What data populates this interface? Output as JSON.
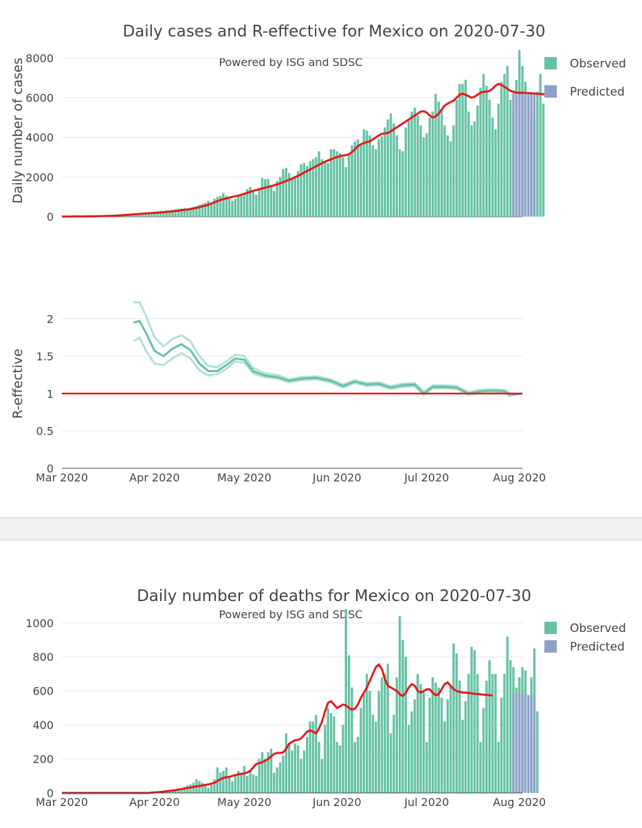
{
  "chart_data": [
    {
      "type": "bar",
      "id": "cases",
      "title": "Daily cases and R-effective for Mexico on 2020-07-30",
      "subtitle": "Powered by ISG and SDSC",
      "ylabel": "Daily number of cases",
      "xlabel": "",
      "ylim": [
        0,
        8500
      ],
      "yticks": [
        0,
        2000,
        4000,
        6000,
        8000
      ],
      "yticklabels": [
        "0",
        "2000",
        "4000",
        "6000",
        "8000"
      ],
      "x_range": [
        "2020-03-01",
        "2020-08-02"
      ],
      "xticks": [
        "2020-03-01",
        "2020-04-01",
        "2020-05-01",
        "2020-06-01",
        "2020-07-01",
        "2020-08-01"
      ],
      "xticklabels": [
        "Mar 2020",
        "Apr 2020",
        "May 2020",
        "Jun 2020",
        "Jul 2020",
        "Aug 2020"
      ],
      "legend": [
        {
          "name": "Observed",
          "color": "#66c2a5"
        },
        {
          "name": "Predicted",
          "color": "#8da0cb"
        }
      ],
      "legend_position": "top-right",
      "series": [
        {
          "name": "Observed",
          "color": "#66c2a5",
          "start_date": "2020-03-01",
          "values": [
            0,
            2,
            3,
            2,
            4,
            3,
            5,
            6,
            10,
            12,
            16,
            20,
            25,
            30,
            40,
            45,
            55,
            65,
            80,
            85,
            95,
            110,
            120,
            130,
            100,
            80,
            140,
            170,
            190,
            200,
            210,
            230,
            260,
            300,
            280,
            320,
            300,
            340,
            370,
            390,
            410,
            440,
            380,
            460,
            500,
            540,
            600,
            650,
            700,
            800,
            720,
            900,
            1000,
            1050,
            1200,
            1050,
            950,
            800,
            900,
            1050,
            1150,
            1200,
            1400,
            1500,
            1300,
            1100,
            1450,
            1950,
            1900,
            1900,
            1550,
            1300,
            1800,
            2000,
            2400,
            2450,
            2200,
            1900,
            2050,
            2300,
            2650,
            2700,
            2550,
            2800,
            2900,
            3000,
            3300,
            2900,
            2800,
            2700,
            3400,
            3400,
            3300,
            3200,
            3000,
            2500,
            3200,
            3600,
            3800,
            3900,
            3600,
            4400,
            4350,
            4100,
            3600,
            3400,
            3900,
            4050,
            4500,
            4900,
            5200,
            4700,
            4100,
            3400,
            3300,
            4500,
            4900,
            5300,
            5500,
            5100,
            4600,
            4000,
            4200,
            5000,
            5300,
            6200,
            5800,
            5400,
            4600,
            4100,
            3800,
            4600,
            5900,
            6700,
            6700,
            6900,
            5300,
            4600,
            4800,
            5600,
            6500,
            7200,
            6600,
            5900,
            5000,
            4400,
            5700,
            6800,
            7200,
            7600,
            5900,
            5200,
            6900,
            8400,
            7600,
            6800,
            6000,
            5300,
            5000,
            6300,
            7200,
            5700
          ]
        },
        {
          "name": "Predicted",
          "color": "#8da0cb",
          "start_date": "2020-07-30",
          "values": [
            6250,
            6240,
            6230,
            6220,
            6210,
            6200,
            6190,
            6180
          ]
        },
        {
          "name": "Trend",
          "type": "line",
          "color": "#e41a1c",
          "start_date": "2020-03-01",
          "values": [
            5,
            5,
            6,
            6,
            7,
            8,
            9,
            10,
            12,
            14,
            16,
            18,
            21,
            24,
            28,
            33,
            38,
            44,
            52,
            60,
            70,
            80,
            90,
            105,
            115,
            125,
            135,
            150,
            160,
            170,
            180,
            190,
            200,
            210,
            225,
            240,
            255,
            270,
            285,
            300,
            320,
            340,
            360,
            380,
            410,
            440,
            480,
            520,
            560,
            600,
            660,
            720,
            780,
            840,
            880,
            920,
            960,
            1000,
            1030,
            1060,
            1100,
            1150,
            1200,
            1250,
            1300,
            1340,
            1380,
            1420,
            1460,
            1500,
            1540,
            1580,
            1630,
            1680,
            1740,
            1800,
            1860,
            1920,
            1990,
            2060,
            2140,
            2220,
            2300,
            2380,
            2460,
            2540,
            2620,
            2700,
            2770,
            2830,
            2890,
            2950,
            3000,
            3050,
            3080,
            3100,
            3150,
            3250,
            3400,
            3550,
            3650,
            3720,
            3760,
            3800,
            3900,
            4000,
            4100,
            4180,
            4200,
            4220,
            4300,
            4400,
            4500,
            4600,
            4700,
            4800,
            4900,
            5000,
            5100,
            5200,
            5300,
            5320,
            5250,
            5100,
            5000,
            5050,
            5200,
            5400,
            5600,
            5700,
            5780,
            5850,
            6000,
            6150,
            6200,
            6150,
            6080,
            6000,
            6050,
            6150,
            6250,
            6300,
            6300,
            6350,
            6450,
            6600,
            6700,
            6650,
            6550,
            6450,
            6350,
            6300,
            6250,
            6250,
            6250,
            6240,
            6230,
            6220,
            6210,
            6200,
            6190,
            6180,
            6170,
            6160
          ]
        }
      ]
    },
    {
      "type": "line",
      "id": "reff",
      "title": "",
      "ylabel": "R-effective",
      "xlabel": "",
      "ylim": [
        0,
        2.4
      ],
      "yticks": [
        0,
        0.5,
        1,
        1.5,
        2
      ],
      "yticklabels": [
        "0",
        "0.5",
        "1",
        "1.5",
        "2"
      ],
      "x_range": [
        "2020-03-01",
        "2020-08-02"
      ],
      "xticks": [
        "2020-03-01",
        "2020-04-01",
        "2020-05-01",
        "2020-06-01",
        "2020-07-01",
        "2020-08-01"
      ],
      "xticklabels": [
        "Mar 2020",
        "Apr 2020",
        "May 2020",
        "Jun 2020",
        "Jul 2020",
        "Aug 2020"
      ],
      "reference_line": {
        "value": 1,
        "color": "#e41a1c"
      },
      "series": [
        {
          "name": "R-effective",
          "color": "#66c2a5",
          "dates": [
            "2020-03-25",
            "2020-03-27",
            "2020-03-29",
            "2020-04-01",
            "2020-04-04",
            "2020-04-07",
            "2020-04-10",
            "2020-04-13",
            "2020-04-16",
            "2020-04-19",
            "2020-04-22",
            "2020-04-25",
            "2020-04-28",
            "2020-05-01",
            "2020-05-04",
            "2020-05-08",
            "2020-05-12",
            "2020-05-16",
            "2020-05-20",
            "2020-05-25",
            "2020-05-30",
            "2020-06-03",
            "2020-06-07",
            "2020-06-11",
            "2020-06-15",
            "2020-06-19",
            "2020-06-23",
            "2020-06-27",
            "2020-06-30",
            "2020-07-03",
            "2020-07-07",
            "2020-07-11",
            "2020-07-15",
            "2020-07-19",
            "2020-07-23",
            "2020-07-27",
            "2020-07-29"
          ],
          "values": [
            1.95,
            1.97,
            1.82,
            1.57,
            1.5,
            1.6,
            1.66,
            1.58,
            1.4,
            1.3,
            1.3,
            1.38,
            1.47,
            1.45,
            1.3,
            1.24,
            1.22,
            1.17,
            1.2,
            1.21,
            1.17,
            1.1,
            1.16,
            1.12,
            1.13,
            1.08,
            1.11,
            1.12,
            1.0,
            1.09,
            1.09,
            1.08,
            1.0,
            1.03,
            1.04,
            1.03,
            0.98
          ],
          "lower": [
            1.7,
            1.75,
            1.58,
            1.4,
            1.38,
            1.47,
            1.54,
            1.47,
            1.31,
            1.24,
            1.26,
            1.33,
            1.43,
            1.41,
            1.27,
            1.22,
            1.2,
            1.15,
            1.18,
            1.19,
            1.15,
            1.08,
            1.14,
            1.1,
            1.11,
            1.06,
            1.09,
            1.1,
            0.98,
            1.07,
            1.07,
            1.06,
            0.98,
            1.01,
            1.02,
            1.01,
            0.96
          ],
          "upper": [
            2.22,
            2.22,
            2.05,
            1.75,
            1.63,
            1.73,
            1.78,
            1.7,
            1.5,
            1.37,
            1.35,
            1.43,
            1.52,
            1.5,
            1.34,
            1.27,
            1.25,
            1.19,
            1.22,
            1.23,
            1.19,
            1.12,
            1.18,
            1.14,
            1.15,
            1.1,
            1.13,
            1.14,
            1.02,
            1.11,
            1.11,
            1.1,
            1.02,
            1.05,
            1.06,
            1.05,
            1.0
          ]
        },
        {
          "name": "R-effective predicted",
          "color": "#8da0cb",
          "dates": [
            "2020-07-29",
            "2020-08-02"
          ],
          "values": [
            0.98,
            1.0
          ]
        }
      ]
    },
    {
      "type": "bar",
      "id": "deaths",
      "title": "Daily number of deaths for Mexico on 2020-07-30",
      "subtitle": "Powered by ISG and SDSC",
      "ylabel": "",
      "xlabel": "",
      "ylim": [
        0,
        1080
      ],
      "yticks": [
        0,
        200,
        400,
        600,
        800,
        1000
      ],
      "yticklabels": [
        "0",
        "200",
        "400",
        "600",
        "800",
        "1000"
      ],
      "x_range": [
        "2020-03-01",
        "2020-08-02"
      ],
      "xticks": [
        "2020-03-01",
        "2020-04-01",
        "2020-05-01",
        "2020-06-01",
        "2020-07-01",
        "2020-08-01"
      ],
      "xticklabels": [
        "Mar 2020",
        "Apr 2020",
        "May 2020",
        "Jun 2020",
        "Jul 2020",
        "Aug 2020"
      ],
      "legend": [
        {
          "name": "Observed",
          "color": "#66c2a5"
        },
        {
          "name": "Predicted",
          "color": "#8da0cb"
        }
      ],
      "legend_position": "top-right",
      "series": [
        {
          "name": "Observed",
          "color": "#66c2a5",
          "start_date": "2020-03-01",
          "values": [
            0,
            0,
            0,
            0,
            0,
            0,
            0,
            0,
            0,
            0,
            0,
            0,
            0,
            0,
            0,
            0,
            0,
            0,
            0,
            0,
            0,
            0,
            0,
            0,
            0,
            0,
            0,
            0,
            0,
            0,
            2,
            3,
            4,
            5,
            6,
            8,
            10,
            14,
            18,
            20,
            28,
            35,
            45,
            50,
            60,
            80,
            70,
            60,
            40,
            30,
            50,
            80,
            150,
            120,
            130,
            150,
            100,
            70,
            100,
            130,
            120,
            160,
            100,
            130,
            110,
            100,
            200,
            240,
            200,
            240,
            260,
            120,
            150,
            180,
            220,
            350,
            290,
            250,
            290,
            280,
            200,
            250,
            330,
            420,
            420,
            460,
            300,
            200,
            400,
            500,
            470,
            450,
            300,
            280,
            400,
            1080,
            810,
            620,
            300,
            330,
            500,
            580,
            700,
            600,
            460,
            420,
            600,
            680,
            700,
            760,
            350,
            460,
            680,
            1040,
            900,
            800,
            400,
            480,
            550,
            700,
            640,
            600,
            300,
            560,
            680,
            650,
            620,
            560,
            420,
            550,
            630,
            880,
            820,
            660,
            430,
            540,
            700,
            860,
            840,
            700,
            300,
            500,
            660,
            780,
            700,
            700,
            300,
            560,
            700,
            920,
            780,
            740,
            620,
            680,
            740,
            720,
            360,
            680,
            850,
            480
          ]
        },
        {
          "name": "Predicted",
          "color": "#8da0cb",
          "start_date": "2020-07-30",
          "values": [
            585,
            583,
            582,
            580,
            578,
            576,
            575,
            573
          ]
        },
        {
          "name": "Trend",
          "type": "line",
          "color": "#e41a1c",
          "start_date": "2020-03-01",
          "values": [
            0,
            0,
            0,
            0,
            0,
            0,
            0,
            0,
            0,
            0,
            0,
            0,
            0,
            0,
            0,
            0,
            0,
            0,
            0,
            0,
            0,
            0,
            0,
            0,
            0,
            0,
            0,
            0,
            0,
            0,
            2,
            3,
            4,
            6,
            8,
            10,
            12,
            14,
            17,
            20,
            23,
            26,
            29,
            32,
            35,
            38,
            41,
            44,
            47,
            50,
            55,
            60,
            70,
            80,
            88,
            92,
            95,
            100,
            105,
            110,
            112,
            115,
            120,
            130,
            150,
            170,
            175,
            180,
            190,
            200,
            215,
            230,
            235,
            235,
            238,
            260,
            290,
            300,
            310,
            312,
            320,
            340,
            360,
            368,
            360,
            350,
            380,
            420,
            480,
            530,
            540,
            520,
            500,
            510,
            520,
            515,
            500,
            490,
            495,
            520,
            560,
            590,
            620,
            660,
            700,
            740,
            755,
            730,
            670,
            630,
            620,
            610,
            600,
            580,
            570,
            590,
            620,
            640,
            630,
            600,
            590,
            600,
            610,
            610,
            590,
            575,
            580,
            610,
            640,
            650,
            630,
            610,
            600,
            595,
            590,
            590,
            588,
            585,
            583,
            582,
            580,
            578,
            576,
            575,
            573
          ]
        }
      ]
    }
  ]
}
